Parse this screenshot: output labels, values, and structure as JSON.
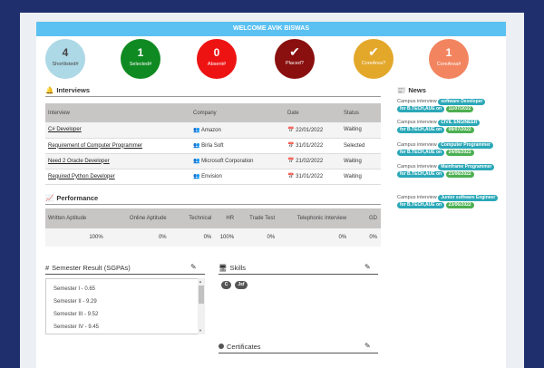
{
  "welcome": "WELCOME AVIK BISWAS",
  "stats": [
    {
      "value": "4",
      "label": "Shortlisted#",
      "color": "#add8e6",
      "text_color": "#444",
      "kind": "number"
    },
    {
      "value": "1",
      "label": "Selected#",
      "color": "#0f8a22",
      "text_color": "#fff",
      "kind": "number"
    },
    {
      "value": "0",
      "label": "Absent#",
      "color": "#ee1313",
      "text_color": "#fff",
      "kind": "number"
    },
    {
      "value": "",
      "label": "Placed?",
      "color": "#8a0f0f",
      "text_color": "#fff",
      "kind": "check"
    },
    {
      "value": "",
      "label": "CoreArea?",
      "color": "#e3a72a",
      "text_color": "#fff",
      "kind": "check"
    },
    {
      "value": "1",
      "label": "CoreArea#",
      "color": "#f28560",
      "text_color": "#fff",
      "kind": "number"
    }
  ],
  "interviews": {
    "title": "Interviews",
    "headers": [
      "Interview",
      "Company",
      "Date",
      "Status"
    ],
    "rows": [
      {
        "interview": "C# Developer",
        "company": "Amazon",
        "date": "22/01/2022",
        "status": "Waiting"
      },
      {
        "interview": "Requirement of Computer Programmer",
        "company": "Birla Soft",
        "date": "31/01/2022",
        "status": "Selected"
      },
      {
        "interview": "Need 2 Oracle Developer",
        "company": "Microsoft Corporation",
        "date": "21/02/2022",
        "status": "Waiting"
      },
      {
        "interview": "Required Python Developer",
        "company": "Envision",
        "date": "31/01/2022",
        "status": "Waiting"
      }
    ]
  },
  "performance": {
    "title": "Performance",
    "headers": [
      "Written Aptitude",
      "Online Aptitude",
      "Technical",
      "HR",
      "Trade Test",
      "Telephonic Interview",
      "GD"
    ],
    "values": [
      "100%",
      "0%",
      "0%",
      "100%",
      "0%",
      "0%",
      "0%"
    ]
  },
  "news": {
    "title": "News",
    "items": [
      {
        "prefix": "Campus interview",
        "role": "software Developer",
        "for": "for B.TECH,AUE on",
        "date": "11/07/2022"
      },
      {
        "prefix": "Campus interview",
        "role": "CIVIL ENGINEER",
        "for": "for B.TECH,AUE on",
        "date": "08/07/2022"
      },
      {
        "prefix": "Campus interview",
        "role": "Computer Programmer",
        "for": "for B.TECH,AUE on",
        "date": "24/06/2022"
      },
      {
        "prefix": "Campus interview",
        "role": "Mainframe Programmer",
        "for": "for B.TECH,AUE on",
        "date": "23/06/2022"
      },
      {
        "prefix": "Campus interview",
        "role": "Junior software Engineer",
        "for": "for B.TECH,AUE on",
        "date": "23/06/2022"
      }
    ]
  },
  "semester": {
    "title": "Semester Result (SGPAs)",
    "items": [
      "Semester I - 0.65",
      "Semester II - 9.29",
      "Semester III - 9.52",
      "Semester IV - 9.45"
    ]
  },
  "skills": {
    "title": "Skills",
    "items": [
      "C",
      "Jsf"
    ]
  },
  "certificates": {
    "title": "Certificates"
  }
}
